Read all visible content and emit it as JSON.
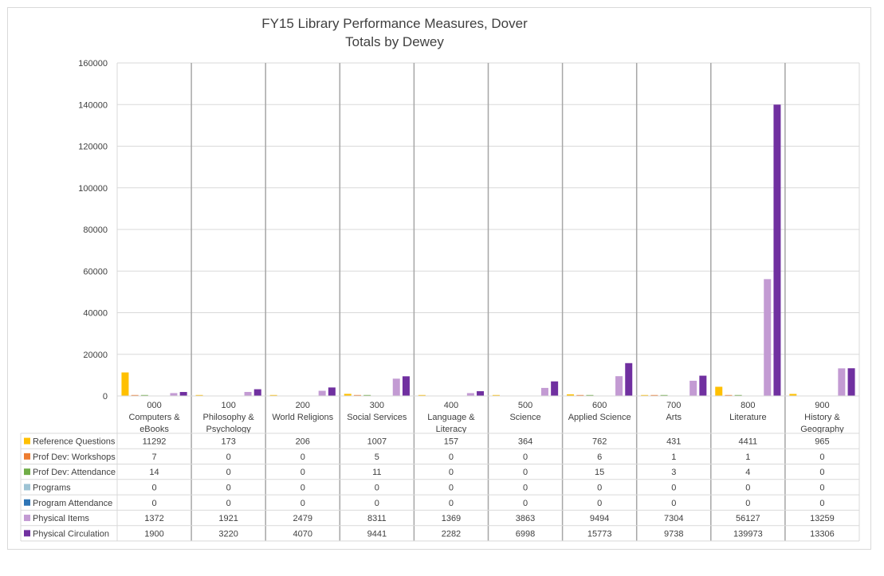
{
  "chart_data": {
    "type": "bar",
    "title": "FY15 Library Performance Measures, Dover",
    "subtitle": "Totals by Dewey",
    "categories": [
      [
        "000",
        "Computers &",
        "eBooks"
      ],
      [
        "100",
        "Philosophy &",
        "Psychology"
      ],
      [
        "200",
        "World Religions"
      ],
      [
        "300",
        "Social Services"
      ],
      [
        "400",
        "Language &",
        "Literacy"
      ],
      [
        "500",
        "Science"
      ],
      [
        "600",
        "Applied Science"
      ],
      [
        "700",
        "Arts"
      ],
      [
        "800",
        "Literature"
      ],
      [
        "900",
        "History &",
        "Geography"
      ]
    ],
    "ylim": [
      0,
      160000
    ],
    "yticks": [
      "0",
      "20000",
      "40000",
      "60000",
      "80000",
      "100000",
      "120000",
      "140000",
      "160000"
    ],
    "grid": true,
    "legend": "data-table",
    "series": [
      {
        "name": "Reference Questions",
        "color": "#FFC000",
        "values": [
          11292,
          173,
          206,
          1007,
          157,
          364,
          762,
          431,
          4411,
          965
        ]
      },
      {
        "name": "Prof Dev: Workshops",
        "color": "#ED7D31",
        "values": [
          7,
          0,
          0,
          5,
          0,
          0,
          6,
          1,
          1,
          0
        ]
      },
      {
        "name": "Prof Dev: Attendance",
        "color": "#70AD47",
        "values": [
          14,
          0,
          0,
          11,
          0,
          0,
          15,
          3,
          4,
          0
        ]
      },
      {
        "name": "Programs",
        "color": "#9DC3D4",
        "values": [
          0,
          0,
          0,
          0,
          0,
          0,
          0,
          0,
          0,
          0
        ]
      },
      {
        "name": "Program Attendance",
        "color": "#2E75B6",
        "values": [
          0,
          0,
          0,
          0,
          0,
          0,
          0,
          0,
          0,
          0
        ]
      },
      {
        "name": "Physical Items",
        "color": "#C39BD3",
        "values": [
          1372,
          1921,
          2479,
          8311,
          1369,
          3863,
          9494,
          7304,
          56127,
          13259
        ]
      },
      {
        "name": "Physical Circulation",
        "color": "#7030A0",
        "values": [
          1900,
          3220,
          4070,
          9441,
          2282,
          6998,
          15773,
          9738,
          139973,
          13306
        ]
      }
    ]
  }
}
